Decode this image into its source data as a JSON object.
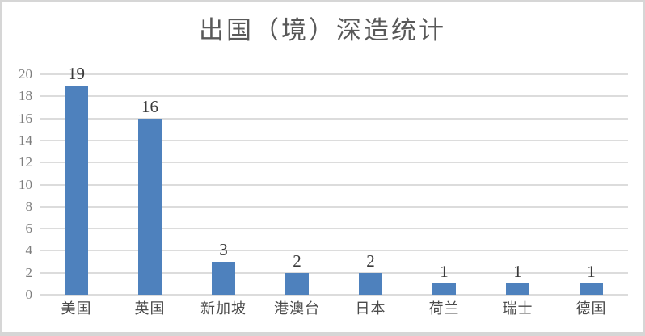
{
  "chart_data": {
    "type": "bar",
    "title": "出国（境）深造统计",
    "categories": [
      "美国",
      "英国",
      "新加坡",
      "港澳台",
      "日本",
      "荷兰",
      "瑞士",
      "德国"
    ],
    "values": [
      19,
      16,
      3,
      2,
      2,
      1,
      1,
      1
    ],
    "xlabel": "",
    "ylabel": "",
    "ylim": [
      0,
      20
    ],
    "ytick_step": 2,
    "grid": "horizontal",
    "legend": "none",
    "data_labels_shown": true,
    "colors": {
      "bar": "#4e81bd",
      "title": "#595959",
      "gridline": "#dcdcdc",
      "y_tick_label": "#7d7d7d",
      "category_label": "#4b4b4b",
      "value_label": "#3a3a3a",
      "frame_border": "#d6d6d6",
      "background": "#ffffff"
    }
  }
}
